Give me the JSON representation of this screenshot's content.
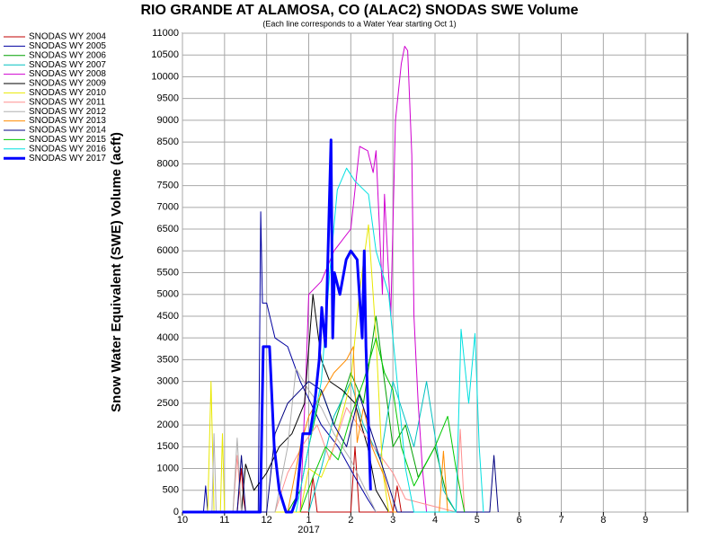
{
  "chart_data": {
    "type": "line",
    "title": "RIO GRANDE AT ALAMOSA, CO (ALAC2) SNODAS SWE Volume",
    "subtitle": "(Each line corresponds to a Water Year starting Oct 1)",
    "y_label": "Snow Water Equivalent (SWE) Volume (acft)",
    "year_label": {
      "text": "2017",
      "x": 3
    },
    "xlim": [
      0,
      12
    ],
    "xticks": [
      {
        "value": 0,
        "label": "10"
      },
      {
        "value": 1,
        "label": "11"
      },
      {
        "value": 2,
        "label": "12"
      },
      {
        "value": 3,
        "label": "1"
      },
      {
        "value": 4,
        "label": "2"
      },
      {
        "value": 5,
        "label": "3"
      },
      {
        "value": 6,
        "label": "4"
      },
      {
        "value": 7,
        "label": "5"
      },
      {
        "value": 8,
        "label": "6"
      },
      {
        "value": 9,
        "label": "7"
      },
      {
        "value": 10,
        "label": "8"
      },
      {
        "value": 11,
        "label": "9"
      }
    ],
    "ylim": [
      0,
      11000
    ],
    "yticks": [
      0,
      500,
      1000,
      1500,
      2000,
      2500,
      3000,
      3500,
      4000,
      4500,
      5000,
      5500,
      6000,
      6500,
      7000,
      7500,
      8000,
      8500,
      9000,
      9500,
      10000,
      10500,
      11000
    ],
    "grid": true,
    "legend": "left",
    "series": [
      {
        "name": "SNODAS WY 2004",
        "color": "#c00000",
        "x": [
          1.3,
          1.4,
          1.45,
          1.5,
          1.6,
          3.0,
          3.1,
          3.2,
          4.0,
          4.1,
          4.2,
          5.0,
          5.1,
          5.2
        ],
        "values": [
          0,
          1000,
          300,
          0,
          0,
          0,
          800,
          0,
          0,
          1500,
          0,
          0,
          600,
          0
        ]
      },
      {
        "name": "SNODAS WY 2005",
        "color": "#0000a0",
        "x": [
          0.5,
          0.55,
          0.6,
          1.8,
          1.86,
          1.9,
          2.0,
          2.2,
          2.5,
          2.8,
          3.0,
          3.3,
          3.7,
          4.1,
          4.4,
          4.6
        ],
        "values": [
          0,
          600,
          0,
          0,
          6900,
          4800,
          4800,
          4000,
          3800,
          3000,
          2600,
          2000,
          1500,
          800,
          300,
          0
        ]
      },
      {
        "name": "SNODAS WY 2006",
        "color": "#00a000",
        "x": [
          2.5,
          2.8,
          3.0,
          3.3,
          3.6,
          4.0,
          4.3,
          4.6,
          4.8,
          5.0,
          5.3,
          5.6,
          6.0,
          6.3,
          6.5
        ],
        "values": [
          0,
          500,
          1500,
          2800,
          2000,
          3200,
          2500,
          4500,
          3000,
          1500,
          2000,
          800,
          1500,
          300,
          0
        ]
      },
      {
        "name": "SNODAS WY 2007",
        "color": "#00c0c0",
        "x": [
          3.0,
          3.3,
          3.6,
          4.0,
          4.3,
          4.7,
          5.0,
          5.5,
          5.8,
          6.2,
          6.5
        ],
        "values": [
          0,
          1000,
          2200,
          3000,
          2000,
          1200,
          3000,
          1500,
          3000,
          500,
          0
        ]
      },
      {
        "name": "SNODAS WY 2008",
        "color": "#d000d0",
        "x": [
          2.8,
          2.93,
          3.0,
          3.3,
          3.6,
          4.0,
          4.21,
          4.4,
          4.53,
          4.6,
          4.75,
          4.8,
          4.95,
          5.06,
          5.2,
          5.28,
          5.35,
          5.45,
          5.5,
          5.55,
          5.6,
          5.7,
          5.8
        ],
        "values": [
          0,
          3000,
          5000,
          5300,
          6000,
          6500,
          8400,
          8300,
          7800,
          8300,
          5000,
          7300,
          4500,
          9000,
          10300,
          10700,
          10600,
          8200,
          4500,
          3500,
          2500,
          1000,
          0
        ]
      },
      {
        "name": "SNODAS WY 2009",
        "color": "#000000",
        "x": [
          1.4,
          1.5,
          1.7,
          2.0,
          2.3,
          2.6,
          2.9,
          3.1,
          3.3,
          3.5,
          3.8,
          4.1,
          4.4,
          4.6,
          4.9
        ],
        "values": [
          0,
          1100,
          500,
          900,
          1500,
          1800,
          2500,
          5000,
          3500,
          3000,
          2800,
          2500,
          1500,
          500,
          0
        ]
      },
      {
        "name": "SNODAS WY 2010",
        "color": "#e8e800",
        "x": [
          0.6,
          0.68,
          0.75,
          0.9,
          0.95,
          1.0,
          2.8,
          3.0,
          3.3,
          3.6,
          4.0,
          4.2,
          4.42,
          4.6,
          4.75,
          4.9
        ],
        "values": [
          0,
          3000,
          0,
          0,
          1800,
          0,
          0,
          1000,
          800,
          1500,
          3000,
          5000,
          6600,
          4000,
          1000,
          0
        ]
      },
      {
        "name": "SNODAS WY 2011",
        "color": "#ff9090",
        "x": [
          1.2,
          1.3,
          1.4,
          2.2,
          2.5,
          2.9,
          3.2,
          3.5,
          3.9,
          4.3,
          4.7,
          5.0,
          5.3,
          6.5,
          6.6,
          6.7
        ],
        "values": [
          0,
          1300,
          0,
          0,
          900,
          1600,
          2000,
          1200,
          2400,
          1800,
          1300,
          900,
          300,
          0,
          1900,
          0
        ]
      },
      {
        "name": "SNODAS WY 2012",
        "color": "#b0b0b0",
        "x": [
          0.7,
          0.75,
          0.8,
          1.2,
          1.3,
          1.4,
          2.2,
          2.5,
          2.7,
          3.0,
          3.3,
          3.6,
          4.0,
          4.3,
          4.6
        ],
        "values": [
          0,
          1800,
          0,
          0,
          1700,
          0,
          0,
          1500,
          3300,
          2800,
          2400,
          1800,
          1200,
          600,
          0
        ]
      },
      {
        "name": "SNODAS WY 2013",
        "color": "#ff8c00",
        "x": [
          2.5,
          2.8,
          3.0,
          3.3,
          3.6,
          3.9,
          4.06,
          4.15,
          4.3,
          4.5,
          4.8,
          5.0,
          6.1,
          6.2,
          6.3
        ],
        "values": [
          0,
          1500,
          2200,
          2700,
          3200,
          3500,
          3800,
          1600,
          2400,
          1500,
          800,
          0,
          0,
          1400,
          0
        ]
      },
      {
        "name": "SNODAS WY 2014",
        "color": "#000080",
        "x": [
          1.3,
          1.4,
          1.5,
          2.0,
          2.2,
          2.5,
          2.8,
          3.0,
          3.3,
          3.6,
          3.9,
          4.2,
          4.5,
          4.8,
          5.1,
          7.3,
          7.4,
          7.5
        ],
        "values": [
          0,
          1300,
          0,
          0,
          1800,
          2500,
          2800,
          3000,
          2800,
          2000,
          1500,
          2700,
          1800,
          900,
          0,
          0,
          1300,
          0
        ]
      },
      {
        "name": "SNODAS WY 2015",
        "color": "#00c800",
        "x": [
          2.8,
          3.1,
          3.4,
          3.7,
          4.0,
          4.3,
          4.6,
          4.8,
          5.0,
          5.2,
          5.5,
          6.0,
          6.3,
          6.5,
          6.7
        ],
        "values": [
          0,
          800,
          1500,
          1200,
          2200,
          3000,
          4000,
          3200,
          2800,
          1500,
          600,
          1500,
          2200,
          1000,
          0
        ]
      },
      {
        "name": "SNODAS WY 2016",
        "color": "#00e0e0",
        "x": [
          2.7,
          3.0,
          3.3,
          3.5,
          3.68,
          3.9,
          4.1,
          4.42,
          4.6,
          4.9,
          5.1,
          5.3,
          5.5,
          6.5,
          6.62,
          6.8,
          6.95,
          7.05,
          7.15
        ],
        "values": [
          0,
          1500,
          3000,
          5500,
          7400,
          7900,
          7600,
          7300,
          6000,
          5000,
          3000,
          1000,
          0,
          0,
          4200,
          2500,
          4100,
          1500,
          0
        ]
      },
      {
        "name": "SNODAS WY 2017",
        "color": "#0000ff",
        "line_width": 3,
        "x": [
          0,
          1.85,
          1.92,
          2.07,
          2.18,
          2.3,
          2.46,
          2.6,
          2.71,
          2.86,
          3.03,
          3.14,
          3.25,
          3.31,
          3.4,
          3.53,
          3.57,
          3.61,
          3.74,
          3.89,
          4.0,
          4.15,
          4.27,
          4.32,
          4.36,
          4.42,
          4.47
        ],
        "values": [
          0,
          0,
          3800,
          3800,
          1500,
          500,
          0,
          0,
          300,
          1800,
          1800,
          2500,
          3500,
          4700,
          3800,
          8550,
          4000,
          5500,
          5000,
          5800,
          6000,
          5800,
          4000,
          6000,
          3800,
          2000,
          500
        ]
      }
    ]
  }
}
